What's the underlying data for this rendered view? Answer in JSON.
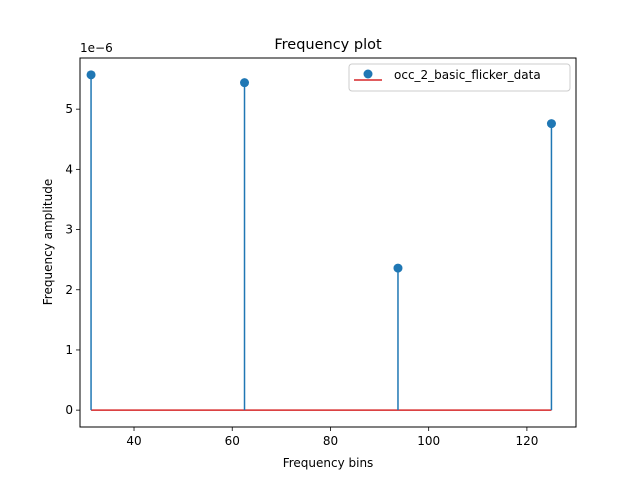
{
  "chart_data": {
    "type": "stem",
    "title": "Frequency plot",
    "xlabel": "Frequency bins",
    "ylabel": "Frequency amplitude",
    "y_offset_label": "1e−6",
    "y_scale": 1e-06,
    "xlim": [
      29,
      130
    ],
    "ylim": [
      -0.28,
      5.85
    ],
    "x_ticks": [
      40,
      60,
      80,
      100,
      120
    ],
    "y_ticks": [
      0,
      1,
      2,
      3,
      4,
      5
    ],
    "grid": false,
    "legend_position": "top-right",
    "series": [
      {
        "name": "occ_2_basic_flicker_data",
        "x": [
          31.25,
          62.5,
          93.75,
          125
        ],
        "y": [
          5.57,
          5.44,
          2.36,
          4.76
        ],
        "color": "#1f77b4",
        "baseline_color": "#d62728"
      }
    ]
  }
}
